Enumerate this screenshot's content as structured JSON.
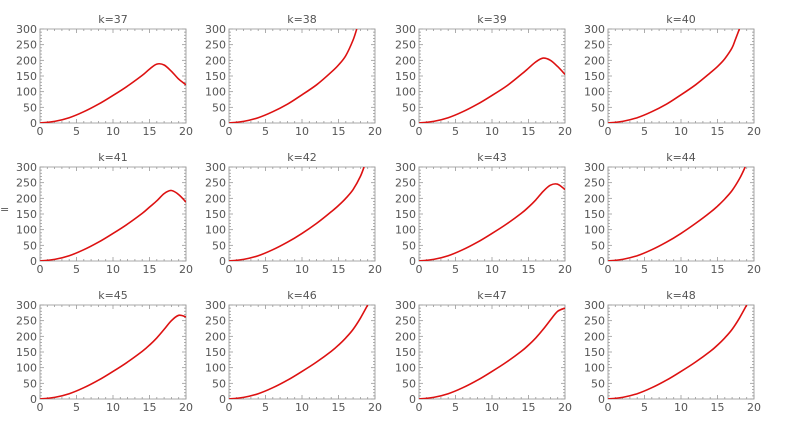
{
  "stray_text": "=",
  "chart_data": [
    {
      "type": "line",
      "title": "k=37",
      "x": [
        0,
        2,
        4,
        6,
        8,
        10,
        12,
        14,
        15,
        16,
        17,
        18,
        19,
        20
      ],
      "series": [
        {
          "values": [
            0,
            5,
            17,
            36,
            60,
            88,
            118,
            152,
            172,
            188,
            185,
            165,
            140,
            122
          ]
        }
      ],
      "xlim": [
        0,
        20
      ],
      "ylim": [
        0,
        300
      ],
      "xticks": [
        0,
        5,
        10,
        15,
        20
      ],
      "yticks": [
        0,
        50,
        100,
        150,
        200,
        250,
        300
      ]
    },
    {
      "type": "line",
      "title": "k=38",
      "x": [
        0,
        2,
        4,
        6,
        8,
        10,
        12,
        14,
        15,
        16,
        17,
        17.5
      ],
      "series": [
        {
          "values": [
            0,
            5,
            17,
            36,
            60,
            90,
            122,
            162,
            185,
            215,
            265,
            300
          ]
        }
      ],
      "xlim": [
        0,
        20
      ],
      "ylim": [
        0,
        300
      ],
      "xticks": [
        0,
        5,
        10,
        15,
        20
      ],
      "yticks": [
        0,
        50,
        100,
        150,
        200,
        250,
        300
      ]
    },
    {
      "type": "line",
      "title": "k=39",
      "x": [
        0,
        2,
        4,
        6,
        8,
        10,
        12,
        14,
        15,
        16,
        17,
        18,
        19,
        20
      ],
      "series": [
        {
          "values": [
            0,
            5,
            17,
            36,
            60,
            88,
            118,
            155,
            175,
            195,
            207,
            200,
            180,
            155
          ]
        }
      ],
      "xlim": [
        0,
        20
      ],
      "ylim": [
        0,
        300
      ],
      "xticks": [
        0,
        5,
        10,
        15,
        20
      ],
      "yticks": [
        0,
        50,
        100,
        150,
        200,
        250,
        300
      ]
    },
    {
      "type": "line",
      "title": "k=40",
      "x": [
        0,
        2,
        4,
        6,
        8,
        10,
        12,
        14,
        15,
        16,
        17,
        17.5,
        18
      ],
      "series": [
        {
          "values": [
            0,
            5,
            17,
            36,
            60,
            90,
            122,
            160,
            180,
            205,
            240,
            270,
            300
          ]
        }
      ],
      "xlim": [
        0,
        20
      ],
      "ylim": [
        0,
        300
      ],
      "xticks": [
        0,
        5,
        10,
        15,
        20
      ],
      "yticks": [
        0,
        50,
        100,
        150,
        200,
        250,
        300
      ]
    },
    {
      "type": "line",
      "title": "k=41",
      "x": [
        0,
        2,
        4,
        6,
        8,
        10,
        12,
        14,
        15,
        16,
        17,
        18,
        19,
        20
      ],
      "series": [
        {
          "values": [
            0,
            5,
            17,
            36,
            60,
            88,
            118,
            152,
            172,
            192,
            215,
            225,
            212,
            188
          ]
        }
      ],
      "xlim": [
        0,
        20
      ],
      "ylim": [
        0,
        300
      ],
      "xticks": [
        0,
        5,
        10,
        15,
        20
      ],
      "yticks": [
        0,
        50,
        100,
        150,
        200,
        250,
        300
      ]
    },
    {
      "type": "line",
      "title": "k=42",
      "x": [
        0,
        2,
        4,
        6,
        8,
        10,
        12,
        14,
        15,
        16,
        17,
        18,
        18.5
      ],
      "series": [
        {
          "values": [
            0,
            5,
            17,
            36,
            60,
            88,
            120,
            157,
            177,
            200,
            228,
            270,
            300
          ]
        }
      ],
      "xlim": [
        0,
        20
      ],
      "ylim": [
        0,
        300
      ],
      "xticks": [
        0,
        5,
        10,
        15,
        20
      ],
      "yticks": [
        0,
        50,
        100,
        150,
        200,
        250,
        300
      ]
    },
    {
      "type": "line",
      "title": "k=43",
      "x": [
        0,
        2,
        4,
        6,
        8,
        10,
        12,
        14,
        15,
        16,
        17,
        18,
        19,
        20
      ],
      "series": [
        {
          "values": [
            0,
            5,
            17,
            36,
            60,
            88,
            118,
            152,
            172,
            195,
            222,
            242,
            245,
            228
          ]
        }
      ],
      "xlim": [
        0,
        20
      ],
      "ylim": [
        0,
        300
      ],
      "xticks": [
        0,
        5,
        10,
        15,
        20
      ],
      "yticks": [
        0,
        50,
        100,
        150,
        200,
        250,
        300
      ]
    },
    {
      "type": "line",
      "title": "k=44",
      "x": [
        0,
        2,
        4,
        6,
        8,
        10,
        12,
        14,
        15,
        16,
        17,
        18,
        18.8
      ],
      "series": [
        {
          "values": [
            0,
            5,
            17,
            36,
            60,
            88,
            120,
            155,
            175,
            198,
            225,
            262,
            300
          ]
        }
      ],
      "xlim": [
        0,
        20
      ],
      "ylim": [
        0,
        300
      ],
      "xticks": [
        0,
        5,
        10,
        15,
        20
      ],
      "yticks": [
        0,
        50,
        100,
        150,
        200,
        250,
        300
      ]
    },
    {
      "type": "line",
      "title": "k=45",
      "x": [
        0,
        2,
        4,
        6,
        8,
        10,
        12,
        14,
        15,
        16,
        17,
        18,
        19,
        20
      ],
      "series": [
        {
          "values": [
            0,
            5,
            17,
            36,
            60,
            88,
            118,
            152,
            172,
            195,
            222,
            250,
            267,
            262
          ]
        }
      ],
      "xlim": [
        0,
        20
      ],
      "ylim": [
        0,
        300
      ],
      "xticks": [
        0,
        5,
        10,
        15,
        20
      ],
      "yticks": [
        0,
        50,
        100,
        150,
        200,
        250,
        300
      ]
    },
    {
      "type": "line",
      "title": "k=46",
      "x": [
        0,
        2,
        4,
        6,
        8,
        10,
        12,
        14,
        15,
        16,
        17,
        18,
        19
      ],
      "series": [
        {
          "values": [
            0,
            5,
            17,
            36,
            60,
            88,
            118,
            152,
            172,
            195,
            222,
            258,
            300
          ]
        }
      ],
      "xlim": [
        0,
        20
      ],
      "ylim": [
        0,
        300
      ],
      "xticks": [
        0,
        5,
        10,
        15,
        20
      ],
      "yticks": [
        0,
        50,
        100,
        150,
        200,
        250,
        300
      ]
    },
    {
      "type": "line",
      "title": "k=47",
      "x": [
        0,
        2,
        4,
        6,
        8,
        10,
        12,
        14,
        15,
        16,
        17,
        18,
        19,
        20
      ],
      "series": [
        {
          "values": [
            0,
            5,
            17,
            36,
            60,
            88,
            118,
            152,
            172,
            195,
            222,
            252,
            280,
            290
          ]
        }
      ],
      "xlim": [
        0,
        20
      ],
      "ylim": [
        0,
        300
      ],
      "xticks": [
        0,
        5,
        10,
        15,
        20
      ],
      "yticks": [
        0,
        50,
        100,
        150,
        200,
        250,
        300
      ]
    },
    {
      "type": "line",
      "title": "k=48",
      "x": [
        0,
        2,
        4,
        6,
        8,
        10,
        12,
        14,
        15,
        16,
        17,
        18,
        19
      ],
      "series": [
        {
          "values": [
            0,
            5,
            17,
            36,
            60,
            88,
            118,
            152,
            172,
            195,
            222,
            258,
            300
          ]
        }
      ],
      "xlim": [
        0,
        20
      ],
      "ylim": [
        0,
        300
      ],
      "xticks": [
        0,
        5,
        10,
        15,
        20
      ],
      "yticks": [
        0,
        50,
        100,
        150,
        200,
        250,
        300
      ]
    }
  ]
}
